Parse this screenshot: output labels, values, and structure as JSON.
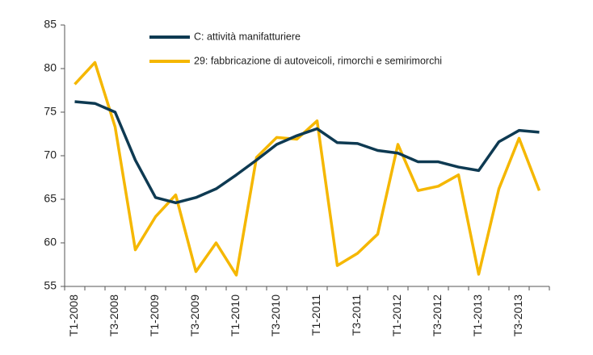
{
  "chart_data": {
    "type": "line",
    "categories": [
      "T1-2008",
      null,
      "T3-2008",
      null,
      "T1-2009",
      null,
      "T3-2009",
      null,
      "T1-2010",
      null,
      "T3-2010",
      null,
      "T1-2011",
      null,
      "T3-2011",
      null,
      "T1-2012",
      null,
      "T3-2012",
      null,
      "T1-2013",
      null,
      "T3-2013",
      null
    ],
    "series": [
      {
        "name": "C: attività manifatturiere",
        "color": "#0e3a52",
        "values": [
          76.2,
          76.0,
          75.0,
          69.5,
          65.2,
          64.6,
          65.2,
          66.2,
          67.8,
          69.5,
          71.3,
          72.3,
          73.1,
          71.5,
          71.4,
          70.6,
          70.3,
          69.3,
          69.3,
          68.7,
          68.3,
          71.6,
          72.9,
          72.7
        ]
      },
      {
        "name": "29: fabbricazione di autoveicoli, rimorchi e semirimorchi",
        "color": "#f5b700",
        "values": [
          78.2,
          80.7,
          73.3,
          59.2,
          63.0,
          65.5,
          56.7,
          60.0,
          56.3,
          69.8,
          72.1,
          71.9,
          74.0,
          57.4,
          58.8,
          61.0,
          71.3,
          66.0,
          66.5,
          67.8,
          56.4,
          66.2,
          72.0,
          66.0
        ]
      }
    ],
    "ylim": [
      55,
      85
    ],
    "yticks": [
      55,
      60,
      65,
      70,
      75,
      80,
      85
    ],
    "grid": false,
    "legend": "top"
  }
}
